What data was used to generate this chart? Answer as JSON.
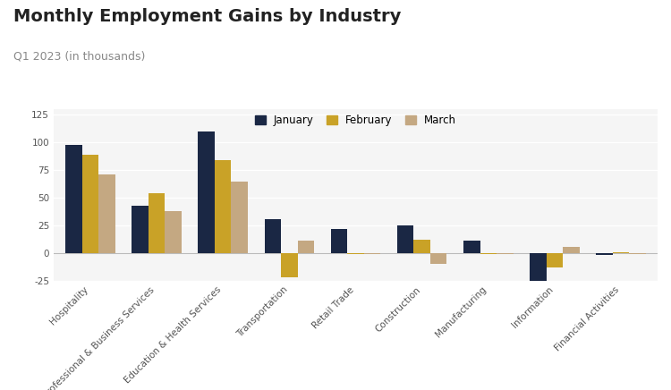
{
  "title": "Monthly Employment Gains by Industry",
  "subtitle": "Q1 2023 (in thousands)",
  "categories": [
    "Hospitality",
    "Professional & Business Services",
    "Education & Health Services",
    "Transportation",
    "Retail Trade",
    "Construction",
    "Manufacturing",
    "Information",
    "Financial Activities"
  ],
  "series": {
    "January": [
      98,
      43,
      110,
      31,
      22,
      25,
      11,
      -27,
      -2
    ],
    "February": [
      89,
      54,
      84,
      -22,
      -1,
      12,
      -1,
      -13,
      1
    ],
    "March": [
      71,
      38,
      65,
      11,
      -1,
      -10,
      -1,
      6,
      -1
    ]
  },
  "colors": {
    "January": "#1a2744",
    "February": "#c9a227",
    "March": "#c4a882"
  },
  "ylim": [
    -25,
    130
  ],
  "yticks": [
    -25,
    0,
    25,
    50,
    75,
    100,
    125
  ],
  "background_color": "#ffffff",
  "plot_bg_color": "#f5f5f5",
  "grid_color": "#ffffff",
  "bar_width": 0.25,
  "title_fontsize": 14,
  "subtitle_fontsize": 9,
  "tick_fontsize": 7.5,
  "legend_fontsize": 8.5
}
